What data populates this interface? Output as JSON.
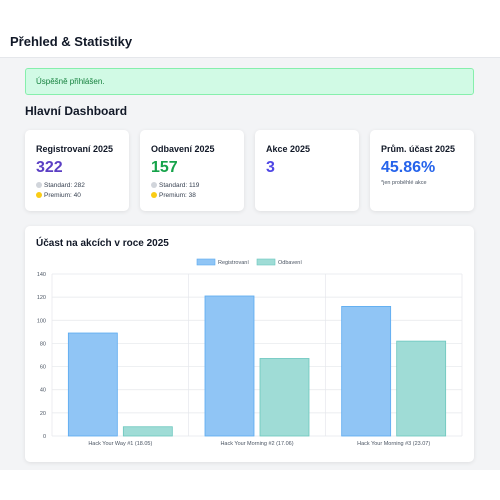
{
  "header": {
    "title": "Přehled & Statistiky"
  },
  "alert": {
    "text": "Úspěšně přihlášen."
  },
  "dashboard": {
    "title": "Hlavní Dashboard"
  },
  "cards": [
    {
      "label": "Registrovaní 2025",
      "value": "322",
      "value_color": "#5b3fc4",
      "sub": [
        {
          "dot": "#d1d5db",
          "text": "Standard: 282"
        },
        {
          "dot": "#facc15",
          "text": "Premium: 40"
        }
      ]
    },
    {
      "label": "Odbavení 2025",
      "value": "157",
      "value_color": "#16a34a",
      "sub": [
        {
          "dot": "#d1d5db",
          "text": "Standard: 119"
        },
        {
          "dot": "#facc15",
          "text": "Premium: 38"
        }
      ]
    },
    {
      "label": "Akce 2025",
      "value": "3",
      "value_color": "#4f46e5"
    },
    {
      "label": "Prům. účast 2025",
      "value": "45.86%",
      "value_color": "#2563eb",
      "note": "*jen proběhlé akce"
    }
  ],
  "chart_data": {
    "type": "bar",
    "title": "Účast na akcích v roce 2025",
    "categories": [
      "Hack Your Way #1 (18.05)",
      "Hack Your Morning #2 (17.06)",
      "Hack Your Morning #3 (23.07)"
    ],
    "series": [
      {
        "name": "Registrovaní",
        "values": [
          89,
          121,
          112
        ],
        "color": "#90c5f5",
        "border": "#5aaaf0"
      },
      {
        "name": "Odbavení",
        "values": [
          8,
          67,
          82
        ],
        "color": "#9fdcd6",
        "border": "#6cc7be"
      }
    ],
    "yticks": [
      0,
      20,
      40,
      60,
      80,
      100,
      120,
      140
    ],
    "ylim": [
      0,
      140
    ],
    "legend": "top-center",
    "grid": true
  }
}
